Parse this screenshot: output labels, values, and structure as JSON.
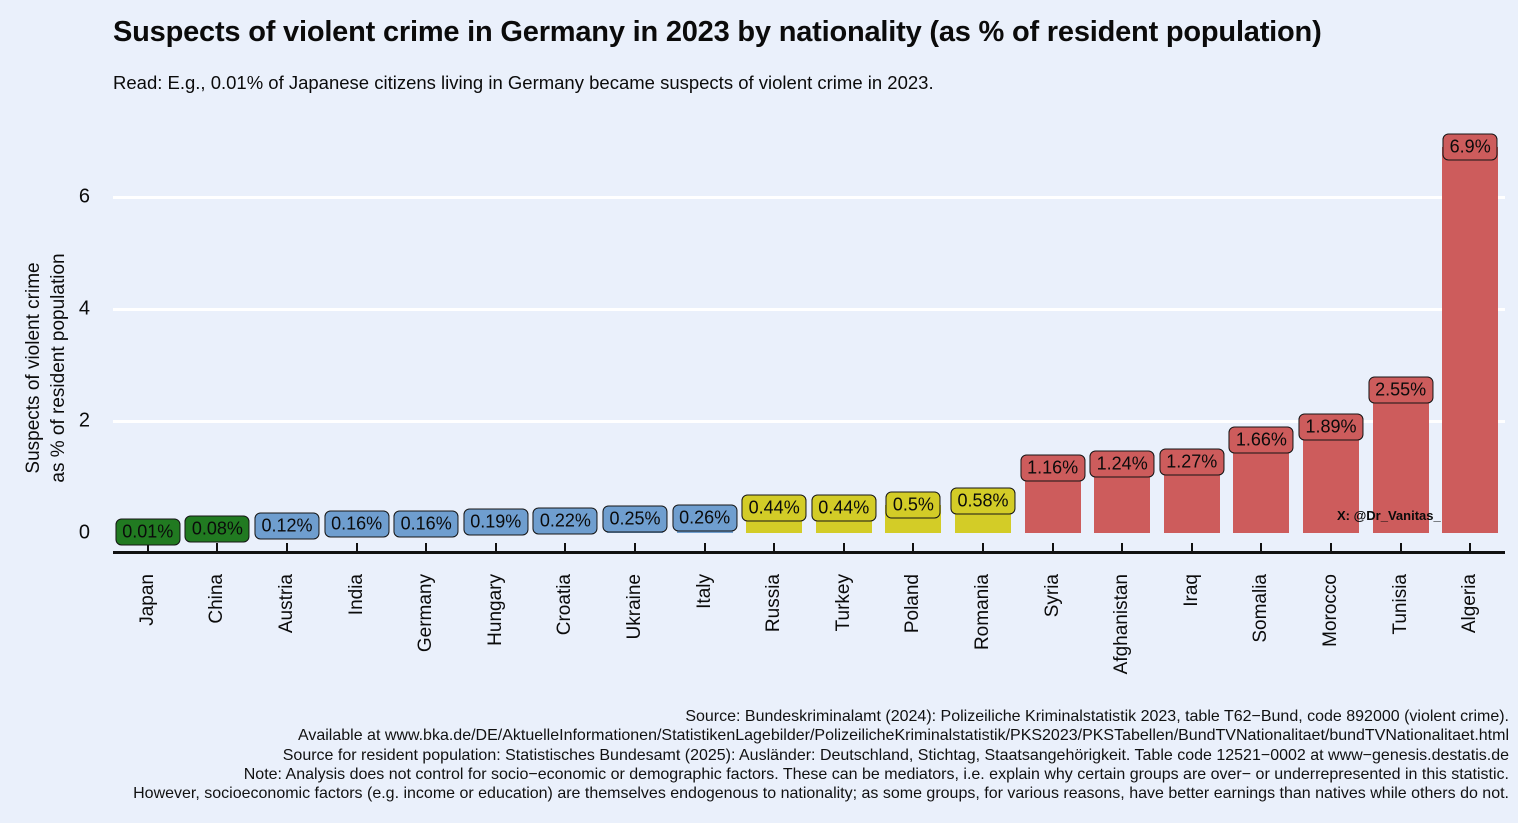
{
  "title": "Suspects of violent crime in Germany in 2023 by nationality (as % of resident population)",
  "subtitle": "Read: E.g., 0.01% of Japanese citizens living in Germany became suspects of violent crime in 2023.",
  "watermark": "X: @Dr_Vanitas_",
  "y_axis": {
    "label_line1": "Suspects of violent crime",
    "label_line2": "as % of resident population"
  },
  "colors": {
    "background": "#eaf0fb",
    "gridline": "#ffffff",
    "axis": "#111111",
    "green": "#217a21",
    "blue": "#6f9ecf",
    "yellow": "#d3cc27",
    "red": "#cd5c5c"
  },
  "chart_data": {
    "type": "bar",
    "title": "Suspects of violent crime in Germany in 2023 by nationality (as % of resident population)",
    "xlabel": "",
    "ylabel": "Suspects of violent crime as % of resident population",
    "ylim": [
      0,
      7
    ],
    "yticks": [
      0,
      2,
      4,
      6
    ],
    "grid": "horizontal-white-lines",
    "legend": "none",
    "categories": [
      "Japan",
      "China",
      "Austria",
      "India",
      "Germany",
      "Hungary",
      "Croatia",
      "Ukraine",
      "Italy",
      "Russia",
      "Turkey",
      "Poland",
      "Romania",
      "Syria",
      "Afghanistan",
      "Iraq",
      "Somalia",
      "Morocco",
      "Tunisia",
      "Algeria"
    ],
    "values": [
      0.01,
      0.08,
      0.12,
      0.16,
      0.16,
      0.19,
      0.22,
      0.25,
      0.26,
      0.44,
      0.44,
      0.5,
      0.58,
      1.16,
      1.24,
      1.27,
      1.66,
      1.89,
      2.55,
      6.9
    ],
    "value_labels": [
      "0.01%",
      "0.08%",
      "0.12%",
      "0.16%",
      "0.16%",
      "0.19%",
      "0.22%",
      "0.25%",
      "0.26%",
      "0.44%",
      "0.44%",
      "0.5%",
      "0.58%",
      "1.16%",
      "1.24%",
      "1.27%",
      "1.66%",
      "1.89%",
      "2.55%",
      "6.9%"
    ],
    "bar_color_group": [
      "green",
      "green",
      "blue",
      "blue",
      "blue",
      "blue",
      "blue",
      "blue",
      "blue",
      "yellow",
      "yellow",
      "yellow",
      "yellow",
      "red",
      "red",
      "red",
      "red",
      "red",
      "red",
      "red"
    ],
    "palette": {
      "green": "#217a21",
      "blue": "#6f9ecf",
      "yellow": "#d3cc27",
      "red": "#cd5c5c"
    }
  },
  "footer": {
    "lines": [
      "Source: Bundeskriminalamt (2024): Polizeiliche Kriminalstatistik 2023, table T62−Bund, code 892000 (violent crime).",
      "Available at www.bka.de/DE/AktuelleInformationen/StatistikenLagebilder/PolizeilicheKriminalstatistik/PKS2023/PKSTabellen/BundTVNationalitaet/bundTVNationalitaet.html",
      "Source for resident population: Statistisches Bundesamt (2025): Ausländer: Deutschland, Stichtag, Staatsangehörigkeit. Table code 12521−0002 at www−genesis.destatis.de",
      "Note: Analysis does not control for socio−economic or demographic factors. These can be mediators, i.e. explain why certain groups are over− or underrepresented in this statistic.",
      "However, socioeconomic factors (e.g. income or education) are themselves endogenous to nationality; as some groups, for various reasons, have better earnings than natives while others do not."
    ]
  }
}
